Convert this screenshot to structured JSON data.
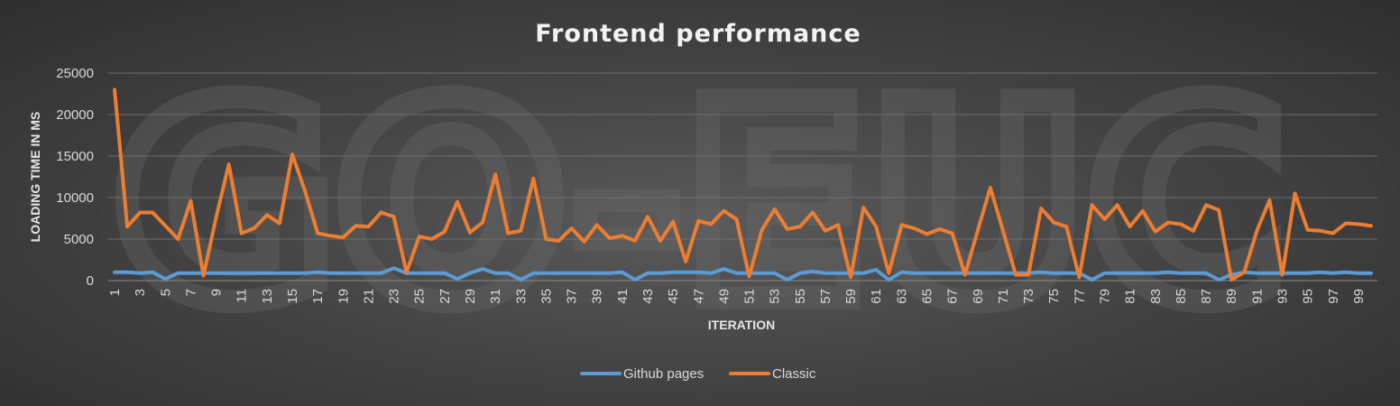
{
  "chart_data": {
    "type": "line",
    "title": "Frontend performance",
    "xlabel": "ITERATION",
    "ylabel": "LOADING TIME IN MS",
    "ylim": [
      0,
      25000
    ],
    "yticks": [
      0,
      5000,
      10000,
      15000,
      20000,
      25000
    ],
    "ytick_labels": [
      "0",
      "5000",
      "10000",
      "15000",
      "20000",
      "25000"
    ],
    "x": [
      1,
      2,
      3,
      4,
      5,
      6,
      7,
      8,
      9,
      10,
      11,
      12,
      13,
      14,
      15,
      16,
      17,
      18,
      19,
      20,
      21,
      22,
      23,
      24,
      25,
      26,
      27,
      28,
      29,
      30,
      31,
      32,
      33,
      34,
      35,
      36,
      37,
      38,
      39,
      40,
      41,
      42,
      43,
      44,
      45,
      46,
      47,
      48,
      49,
      50,
      51,
      52,
      53,
      54,
      55,
      56,
      57,
      58,
      59,
      60,
      61,
      62,
      63,
      64,
      65,
      66,
      67,
      68,
      69,
      70,
      71,
      72,
      73,
      74,
      75,
      76,
      77,
      78,
      79,
      80,
      81,
      82,
      83,
      84,
      85,
      86,
      87,
      88,
      89,
      90,
      91,
      92,
      93,
      94,
      95,
      96,
      97,
      98,
      99,
      100
    ],
    "xtick_labels": [
      "1",
      "3",
      "5",
      "7",
      "9",
      "11",
      "13",
      "15",
      "17",
      "19",
      "21",
      "23",
      "25",
      "27",
      "29",
      "31",
      "33",
      "35",
      "37",
      "39",
      "41",
      "43",
      "45",
      "47",
      "49",
      "51",
      "53",
      "55",
      "57",
      "59",
      "61",
      "63",
      "65",
      "67",
      "69",
      "71",
      "73",
      "75",
      "77",
      "79",
      "81",
      "83",
      "85",
      "87",
      "89",
      "91",
      "93",
      "95",
      "97",
      "99"
    ],
    "grid": true,
    "legend_position": "bottom",
    "series": [
      {
        "name": "Github pages",
        "color": "#5b9bd5",
        "values": [
          1000,
          1000,
          900,
          1000,
          200,
          900,
          900,
          900,
          900,
          900,
          900,
          900,
          900,
          900,
          900,
          900,
          1000,
          900,
          900,
          900,
          900,
          900,
          1500,
          900,
          900,
          900,
          900,
          200,
          900,
          1400,
          900,
          900,
          100,
          900,
          900,
          900,
          900,
          900,
          900,
          900,
          1000,
          100,
          900,
          900,
          1000,
          1000,
          1000,
          900,
          1400,
          900,
          900,
          900,
          900,
          100,
          900,
          1100,
          900,
          900,
          900,
          900,
          1300,
          100,
          1000,
          900,
          900,
          900,
          900,
          900,
          900,
          900,
          900,
          900,
          900,
          1000,
          900,
          900,
          900,
          100,
          900,
          900,
          900,
          900,
          900,
          1000,
          900,
          900,
          900,
          100,
          700,
          1000,
          900,
          900,
          900,
          900,
          900,
          1000,
          900,
          1000,
          900,
          900
        ]
      },
      {
        "name": "Classic",
        "color": "#ed7d31",
        "values": [
          23000,
          6500,
          8200,
          8200,
          6600,
          5000,
          9600,
          600,
          7600,
          14000,
          5700,
          6300,
          7900,
          6900,
          15200,
          10800,
          5700,
          5400,
          5200,
          6600,
          6500,
          8200,
          7700,
          1000,
          5300,
          5000,
          5900,
          9500,
          5800,
          7000,
          12800,
          5700,
          6000,
          12300,
          5000,
          4800,
          6300,
          4700,
          6700,
          5100,
          5400,
          4800,
          7700,
          4800,
          7100,
          2300,
          7200,
          6800,
          8400,
          7400,
          500,
          6100,
          8600,
          6200,
          6500,
          8200,
          6000,
          6700,
          400,
          8800,
          6500,
          900,
          6700,
          6300,
          5600,
          6200,
          5700,
          700,
          6000,
          11200,
          6000,
          700,
          700,
          8700,
          7000,
          6500,
          400,
          9100,
          7400,
          9100,
          6500,
          8400,
          5900,
          7000,
          6800,
          6000,
          9100,
          8500,
          100,
          1000,
          6000,
          9700,
          700,
          10500,
          6100,
          6000,
          5700,
          6900,
          6800,
          6600
        ]
      }
    ]
  },
  "watermark": "GO-EUC"
}
